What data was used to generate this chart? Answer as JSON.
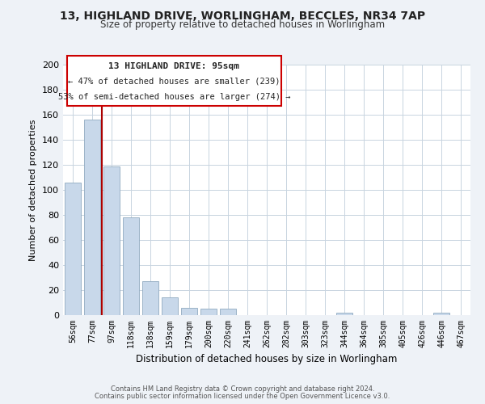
{
  "title": "13, HIGHLAND DRIVE, WORLINGHAM, BECCLES, NR34 7AP",
  "subtitle": "Size of property relative to detached houses in Worlingham",
  "bar_labels": [
    "56sqm",
    "77sqm",
    "97sqm",
    "118sqm",
    "138sqm",
    "159sqm",
    "179sqm",
    "200sqm",
    "220sqm",
    "241sqm",
    "262sqm",
    "282sqm",
    "303sqm",
    "323sqm",
    "344sqm",
    "364sqm",
    "385sqm",
    "405sqm",
    "426sqm",
    "446sqm",
    "467sqm"
  ],
  "bar_heights": [
    106,
    156,
    119,
    78,
    27,
    14,
    6,
    5,
    5,
    0,
    0,
    0,
    0,
    0,
    2,
    0,
    0,
    0,
    0,
    2,
    0
  ],
  "bar_color": "#c8d8ea",
  "bar_edge_color": "#90aac0",
  "ylabel": "Number of detached properties",
  "xlabel": "Distribution of detached houses by size in Worlingham",
  "ylim": [
    0,
    200
  ],
  "yticks": [
    0,
    20,
    40,
    60,
    80,
    100,
    120,
    140,
    160,
    180,
    200
  ],
  "annotation_title": "13 HIGHLAND DRIVE: 95sqm",
  "annotation_line1": "← 47% of detached houses are smaller (239)",
  "annotation_line2": "53% of semi-detached houses are larger (274) →",
  "vline_color": "#aa0000",
  "footer_line1": "Contains HM Land Registry data © Crown copyright and database right 2024.",
  "footer_line2": "Contains public sector information licensed under the Open Government Licence v3.0.",
  "background_color": "#eef2f7",
  "plot_bg_color": "#ffffff",
  "grid_color": "#c8d4e0"
}
